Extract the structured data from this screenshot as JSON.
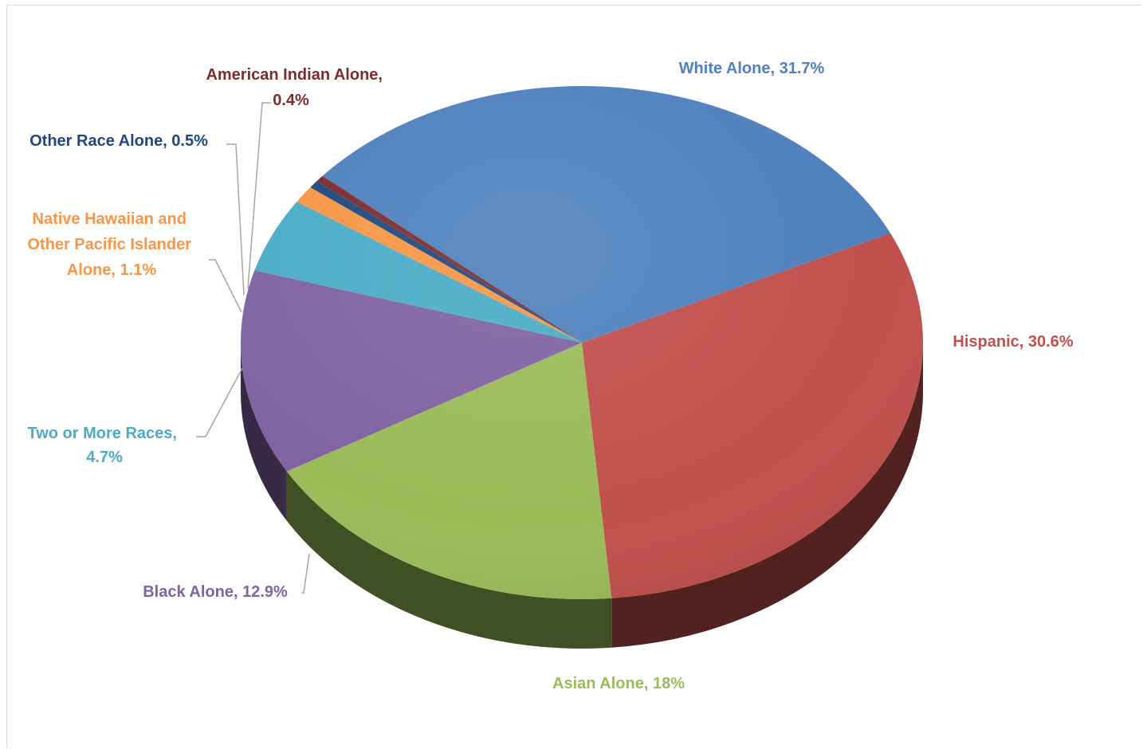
{
  "chart_data": {
    "type": "pie",
    "style": "3d",
    "title": "",
    "slices": [
      {
        "label": "White Alone",
        "value": 31.7,
        "color": "#4f81bd",
        "display": "White Alone, 31.7%"
      },
      {
        "label": "Hispanic",
        "value": 30.6,
        "color": "#c0504d",
        "display": "Hispanic, 30.6%"
      },
      {
        "label": "Asian Alone",
        "value": 18,
        "color": "#9bbb59",
        "display": "Asian Alone, 18%"
      },
      {
        "label": "Black Alone",
        "value": 12.9,
        "color": "#8064a2",
        "display": "Black Alone, 12.9%"
      },
      {
        "label": "Two or More Races",
        "value": 4.7,
        "color": "#4bacc6",
        "display_lines": [
          "Two or More Races,",
          "4.7%"
        ]
      },
      {
        "label": "Native Hawaiian and Other Pacific Islander Alone",
        "value": 1.1,
        "color": "#f79646",
        "display_lines": [
          "Native Hawaiian and",
          "Other Pacific Islander",
          "Alone, 1.1%"
        ]
      },
      {
        "label": "Other Race Alone",
        "value": 0.5,
        "color": "#1f497d",
        "display": "Other Race Alone, 0.5%"
      },
      {
        "label": "American Indian Alone",
        "value": 0.4,
        "color": "#7f2b2b",
        "display_lines": [
          "American Indian Alone,",
          "0.4%"
        ]
      }
    ],
    "label_colors": {
      "White Alone": "#4f81bd",
      "Hispanic": "#c0504d",
      "Asian Alone": "#9bbb59",
      "Black Alone": "#8064a2",
      "Two or More Races": "#4bacc6",
      "Native Hawaiian and Other Pacific Islander Alone": "#f79646",
      "Other Race Alone": "#1f497d",
      "American Indian Alone": "#7f2b2b"
    }
  }
}
